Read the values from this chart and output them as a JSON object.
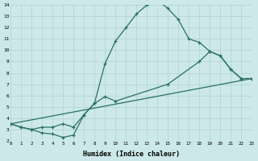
{
  "xlabel": "Humidex (Indice chaleur)",
  "background_color": "#cce8e8",
  "line_color": "#2a7060",
  "xlim": [
    0,
    23
  ],
  "ylim": [
    2,
    14
  ],
  "curve1_x": [
    0,
    1,
    2,
    3,
    4,
    5,
    6,
    7,
    8,
    9,
    10,
    11,
    12,
    13,
    14,
    15,
    16,
    17,
    18,
    19,
    20,
    21,
    22
  ],
  "curve1_y": [
    3.5,
    3.2,
    3.0,
    2.7,
    2.6,
    2.3,
    2.5,
    4.3,
    5.3,
    8.8,
    10.8,
    12.0,
    13.2,
    14.0,
    14.4,
    13.7,
    12.7,
    11.0,
    10.7,
    9.9,
    9.5,
    8.3,
    7.5
  ],
  "curve2_x": [
    0,
    1,
    2,
    3,
    4,
    5,
    6,
    7,
    8,
    9,
    10,
    15,
    18,
    19,
    20,
    21,
    22,
    23
  ],
  "curve2_y": [
    3.5,
    3.2,
    3.0,
    3.2,
    3.2,
    3.5,
    3.2,
    4.3,
    5.3,
    5.9,
    5.5,
    7.0,
    9.0,
    9.9,
    9.5,
    8.3,
    7.5,
    7.5
  ],
  "curve3_x": [
    0,
    23
  ],
  "curve3_y": [
    3.5,
    7.5
  ]
}
